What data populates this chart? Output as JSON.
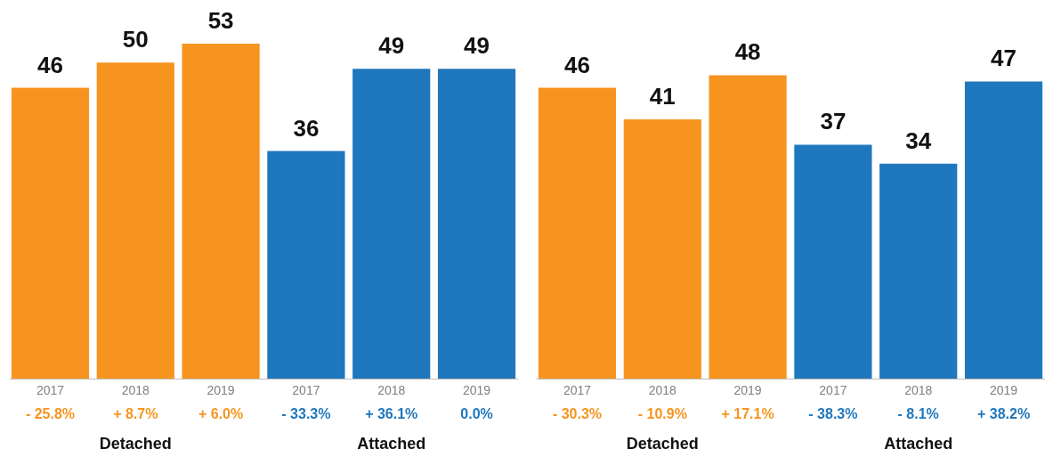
{
  "chart_data": [
    {
      "type": "bar",
      "categories": [
        "2017",
        "2018",
        "2019",
        "2017",
        "2018",
        "2019"
      ],
      "values": [
        46,
        50,
        53,
        36,
        49,
        49
      ],
      "colors": [
        "#f7941f",
        "#f7941f",
        "#f7941f",
        "#1f77bd",
        "#1f77bd",
        "#1f77bd"
      ],
      "data_labels": true,
      "annotations": [
        "- 25.8%",
        "+ 8.7%",
        "+ 6.0%",
        "- 33.3%",
        "+ 36.1%",
        "0.0%",
        "Detached",
        "Attached"
      ]
    },
    {
      "type": "bar",
      "categories": [
        "2017",
        "2018",
        "2019",
        "2017",
        "2018",
        "2019"
      ],
      "values": [
        46,
        41,
        48,
        37,
        34,
        47
      ],
      "colors": [
        "#f7941f",
        "#f7941f",
        "#f7941f",
        "#1f77bd",
        "#1f77bd",
        "#1f77bd"
      ],
      "data_labels": true,
      "annotations": [
        "- 30.3%",
        "- 10.9%",
        "+ 17.1%",
        "- 38.3%",
        "- 8.1%",
        "+ 38.2%",
        "Detached",
        "Attached"
      ]
    }
  ]
}
